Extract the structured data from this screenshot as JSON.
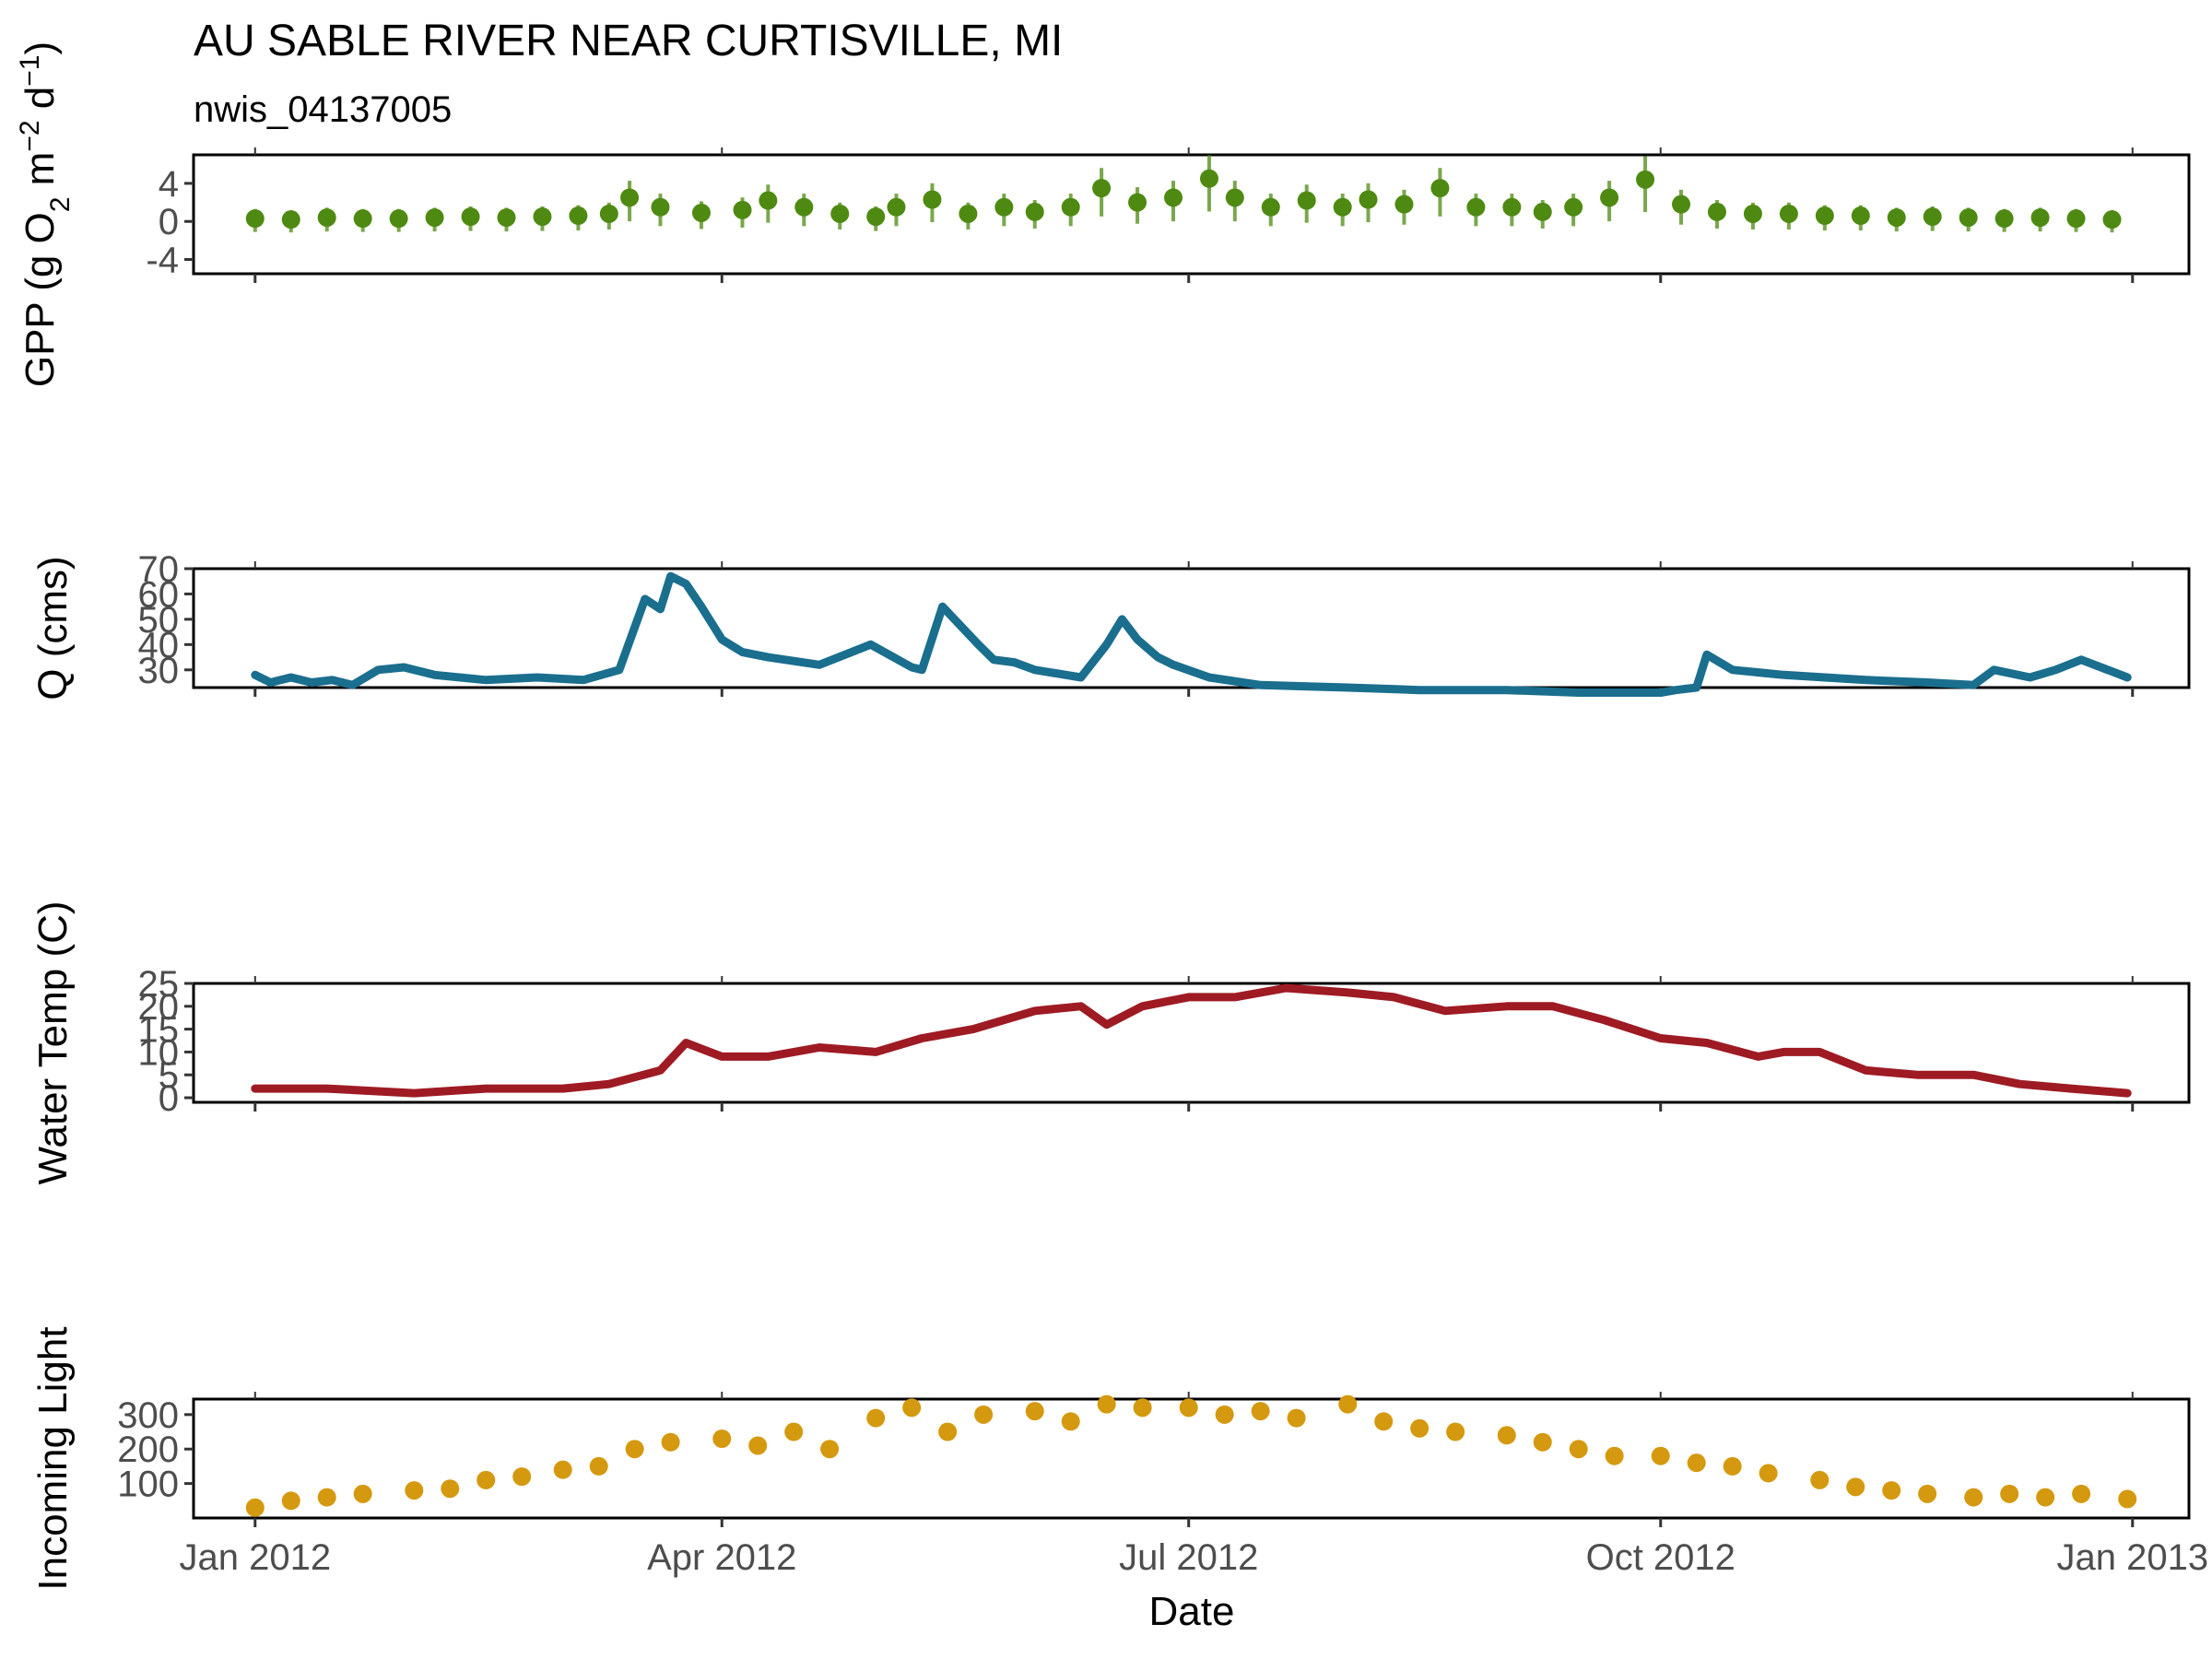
{
  "title": "AU SABLE RIVER NEAR CURTISVILLE, MI",
  "subtitle": "nwis_04137005",
  "xlabel": "Date",
  "colors": {
    "gpp": "#4e8a12",
    "q": "#1a6e8e",
    "temp": "#9e1b24",
    "light": "#d4990e"
  },
  "chart_data": [
    {
      "type": "scatter",
      "ylabel": "GPP (g  O2 m-2 d-1)",
      "ylabel_parts": [
        "GPP (g  O",
        "2",
        " m",
        "−2",
        " d",
        "−1",
        ")"
      ],
      "ylim": [
        -5.5,
        7
      ],
      "yticks": [
        -4,
        0,
        4
      ],
      "ytick_labels": [
        "-4",
        "0",
        "4"
      ],
      "error_bars": true,
      "series": [
        {
          "key": "gpp",
          "x": [
            "2012-01-01",
            "2012-01-08",
            "2012-01-15",
            "2012-01-22",
            "2012-01-29",
            "2012-02-05",
            "2012-02-12",
            "2012-02-19",
            "2012-02-26",
            "2012-03-04",
            "2012-03-10",
            "2012-03-14",
            "2012-03-20",
            "2012-03-28",
            "2012-04-05",
            "2012-04-10",
            "2012-04-17",
            "2012-04-24",
            "2012-05-01",
            "2012-05-05",
            "2012-05-12",
            "2012-05-19",
            "2012-05-26",
            "2012-06-01",
            "2012-06-08",
            "2012-06-14",
            "2012-06-21",
            "2012-06-28",
            "2012-07-05",
            "2012-07-10",
            "2012-07-17",
            "2012-07-24",
            "2012-07-31",
            "2012-08-05",
            "2012-08-12",
            "2012-08-19",
            "2012-08-26",
            "2012-09-02",
            "2012-09-08",
            "2012-09-14",
            "2012-09-21",
            "2012-09-28",
            "2012-10-05",
            "2012-10-12",
            "2012-10-19",
            "2012-10-26",
            "2012-11-02",
            "2012-11-09",
            "2012-11-16",
            "2012-11-23",
            "2012-11-30",
            "2012-12-07",
            "2012-12-14",
            "2012-12-21",
            "2012-12-28"
          ],
          "y": [
            0.3,
            0.2,
            0.4,
            0.3,
            0.3,
            0.4,
            0.5,
            0.4,
            0.5,
            0.6,
            0.8,
            2.5,
            1.5,
            0.9,
            1.2,
            2.2,
            1.5,
            0.8,
            0.5,
            1.5,
            2.3,
            0.8,
            1.5,
            1.0,
            1.5,
            3.5,
            2.0,
            2.5,
            4.5,
            2.5,
            1.5,
            2.2,
            1.5,
            2.3,
            1.8,
            3.5,
            1.5,
            1.5,
            1.0,
            1.5,
            2.5,
            4.4,
            1.8,
            1.0,
            0.8,
            0.8,
            0.6,
            0.6,
            0.4,
            0.5,
            0.4,
            0.3,
            0.4,
            0.3,
            0.2
          ]
        }
      ]
    },
    {
      "type": "line",
      "ylabel": "Q (cms)",
      "ylim": [
        23,
        70
      ],
      "yticks": [
        30,
        40,
        50,
        60,
        70
      ],
      "ytick_labels": [
        "30",
        "40",
        "50",
        "60",
        "70"
      ],
      "series": [
        {
          "key": "q",
          "x": [
            "2012-01-01",
            "2012-01-04",
            "2012-01-08",
            "2012-01-12",
            "2012-01-16",
            "2012-01-20",
            "2012-01-25",
            "2012-01-30",
            "2012-02-05",
            "2012-02-15",
            "2012-02-25",
            "2012-03-05",
            "2012-03-12",
            "2012-03-17",
            "2012-03-20",
            "2012-03-22",
            "2012-03-25",
            "2012-03-28",
            "2012-04-01",
            "2012-04-05",
            "2012-04-10",
            "2012-04-20",
            "2012-04-30",
            "2012-05-08",
            "2012-05-10",
            "2012-05-14",
            "2012-05-21",
            "2012-05-24",
            "2012-05-28",
            "2012-06-01",
            "2012-06-10",
            "2012-06-15",
            "2012-06-18",
            "2012-06-21",
            "2012-06-25",
            "2012-06-28",
            "2012-07-05",
            "2012-07-15",
            "2012-08-01",
            "2012-08-15",
            "2012-09-01",
            "2012-09-15",
            "2012-10-01",
            "2012-10-04",
            "2012-10-08",
            "2012-10-10",
            "2012-10-15",
            "2012-10-25",
            "2012-11-10",
            "2012-11-22",
            "2012-12-01",
            "2012-12-05",
            "2012-12-12",
            "2012-12-17",
            "2012-12-22",
            "2012-12-31"
          ],
          "y": [
            28,
            25,
            27,
            25,
            26,
            24,
            30,
            31,
            28,
            26,
            27,
            26,
            30,
            58,
            54,
            67,
            64,
            55,
            42,
            37,
            35,
            32,
            40,
            31,
            30,
            55,
            40,
            34,
            33,
            30,
            27,
            40,
            50,
            42,
            35,
            32,
            27,
            24,
            23,
            22,
            22,
            21,
            21,
            22,
            23,
            36,
            30,
            28,
            26,
            25,
            24,
            30,
            27,
            30,
            34,
            27
          ]
        }
      ]
    },
    {
      "type": "line",
      "ylabel": "Water Temp (C)",
      "ylim": [
        -1,
        25
      ],
      "yticks": [
        0,
        5,
        10,
        15,
        20,
        25
      ],
      "ytick_labels": [
        "0",
        "5",
        "10",
        "15",
        "20",
        "25"
      ],
      "series": [
        {
          "key": "temp",
          "x": [
            "2012-01-01",
            "2012-01-15",
            "2012-02-01",
            "2012-02-15",
            "2012-03-01",
            "2012-03-10",
            "2012-03-20",
            "2012-03-25",
            "2012-04-01",
            "2012-04-10",
            "2012-04-20",
            "2012-05-01",
            "2012-05-10",
            "2012-05-20",
            "2012-06-01",
            "2012-06-10",
            "2012-06-15",
            "2012-06-22",
            "2012-07-01",
            "2012-07-10",
            "2012-07-20",
            "2012-08-01",
            "2012-08-10",
            "2012-08-20",
            "2012-09-01",
            "2012-09-10",
            "2012-09-20",
            "2012-10-01",
            "2012-10-10",
            "2012-10-20",
            "2012-10-25",
            "2012-11-01",
            "2012-11-10",
            "2012-11-20",
            "2012-12-01",
            "2012-12-10",
            "2012-12-20",
            "2012-12-31"
          ],
          "y": [
            2,
            2,
            1,
            2,
            2,
            3,
            6,
            12,
            9,
            9,
            11,
            10,
            13,
            15,
            19,
            20,
            16,
            20,
            22,
            22,
            24,
            23,
            22,
            19,
            20,
            20,
            17,
            13,
            12,
            9,
            10,
            10,
            6,
            5,
            5,
            3,
            2,
            1
          ]
        }
      ]
    },
    {
      "type": "scatter",
      "ylabel": "Incoming Light",
      "ylim": [
        0,
        345
      ],
      "yticks": [
        100,
        200,
        300
      ],
      "ytick_labels": [
        "100",
        "200",
        "300"
      ],
      "series": [
        {
          "key": "light",
          "x": [
            "2012-01-01",
            "2012-01-08",
            "2012-01-15",
            "2012-01-22",
            "2012-02-01",
            "2012-02-08",
            "2012-02-15",
            "2012-02-22",
            "2012-03-01",
            "2012-03-08",
            "2012-03-15",
            "2012-03-22",
            "2012-04-01",
            "2012-04-08",
            "2012-04-15",
            "2012-04-22",
            "2012-05-01",
            "2012-05-08",
            "2012-05-15",
            "2012-05-22",
            "2012-06-01",
            "2012-06-08",
            "2012-06-15",
            "2012-06-22",
            "2012-07-01",
            "2012-07-08",
            "2012-07-15",
            "2012-07-22",
            "2012-08-01",
            "2012-08-08",
            "2012-08-15",
            "2012-08-22",
            "2012-09-01",
            "2012-09-08",
            "2012-09-15",
            "2012-09-22",
            "2012-10-01",
            "2012-10-08",
            "2012-10-15",
            "2012-10-22",
            "2012-11-01",
            "2012-11-08",
            "2012-11-15",
            "2012-11-22",
            "2012-12-01",
            "2012-12-08",
            "2012-12-15",
            "2012-12-22",
            "2012-12-31"
          ],
          "y": [
            30,
            50,
            60,
            70,
            80,
            85,
            110,
            120,
            140,
            150,
            200,
            220,
            230,
            210,
            250,
            200,
            290,
            320,
            250,
            300,
            310,
            280,
            330,
            320,
            320,
            300,
            310,
            290,
            330,
            280,
            260,
            250,
            240,
            220,
            200,
            180,
            180,
            160,
            150,
            130,
            110,
            90,
            80,
            70,
            60,
            70,
            60,
            70,
            55
          ]
        }
      ]
    }
  ],
  "x_axis": {
    "min": "2011-12-20",
    "max": "2013-01-12",
    "ticks": [
      "2012-01-01",
      "2012-04-01",
      "2012-07-01",
      "2012-10-01",
      "2013-01-01"
    ],
    "tick_labels": [
      "Jan 2012",
      "Apr 2012",
      "Jul 2012",
      "Oct 2012",
      "Jan 2013"
    ]
  }
}
